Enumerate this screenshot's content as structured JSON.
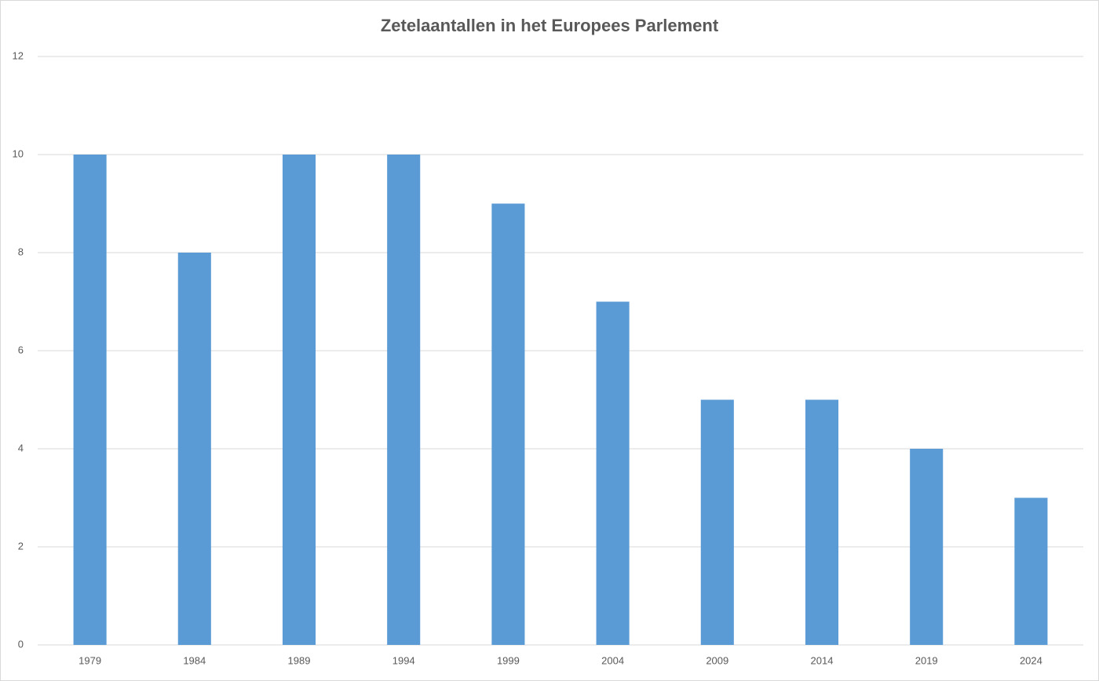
{
  "chart_data": {
    "type": "bar",
    "title": "Zetelaantallen in het Europees Parlement",
    "categories": [
      "1979",
      "1984",
      "1989",
      "1994",
      "1999",
      "2004",
      "2009",
      "2014",
      "2019",
      "2024"
    ],
    "values": [
      10,
      8,
      10,
      10,
      9,
      7,
      5,
      5,
      4,
      3
    ],
    "color": "#5b9bd5",
    "ylim": [
      0,
      12
    ],
    "yticks": [
      0,
      2,
      4,
      6,
      8,
      10,
      12
    ],
    "grid": true
  }
}
